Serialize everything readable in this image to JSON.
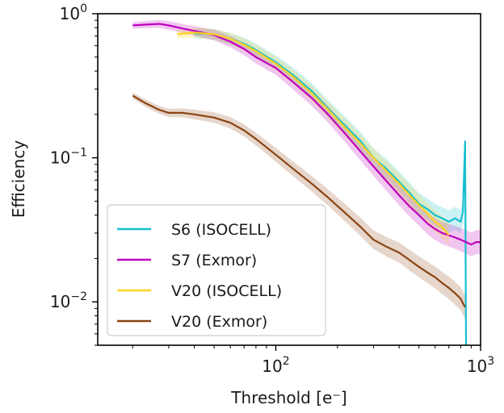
{
  "chart_data": {
    "type": "line",
    "xlabel": "Threshold [e⁻]",
    "ylabel": "Efficiency",
    "xscale": "log",
    "yscale": "log",
    "xlim": [
      13.5,
      1000
    ],
    "ylim": [
      0.005,
      1.0
    ],
    "grid": false,
    "legend_position": "lower-left",
    "x_ticks": [
      {
        "value": 100,
        "base": "10",
        "exp": "2"
      },
      {
        "value": 1000,
        "base": "10",
        "exp": "3"
      }
    ],
    "y_ticks": [
      {
        "value": 1.0,
        "base": "10",
        "exp": "0"
      },
      {
        "value": 0.1,
        "base": "10",
        "exp": "−1"
      },
      {
        "value": 0.01,
        "base": "10",
        "exp": "−2"
      }
    ],
    "series": [
      {
        "name": "S6 (ISOCELL)",
        "color": "#17becf",
        "x": [
          40,
          50,
          60,
          70,
          80,
          100,
          120,
          150,
          180,
          220,
          260,
          300,
          350,
          400,
          450,
          500,
          550,
          600,
          650,
          700,
          750,
          800,
          820,
          840,
          850
        ],
        "y": [
          0.73,
          0.72,
          0.67,
          0.62,
          0.56,
          0.46,
          0.38,
          0.29,
          0.22,
          0.165,
          0.13,
          0.1,
          0.083,
          0.068,
          0.057,
          0.048,
          0.044,
          0.04,
          0.038,
          0.036,
          0.038,
          0.036,
          0.042,
          0.13,
          0.004
        ]
      },
      {
        "name": "S7 (Exmor)",
        "color": "#bf00bf",
        "x": [
          20,
          23,
          27,
          30,
          35,
          40,
          50,
          60,
          70,
          80,
          100,
          120,
          150,
          180,
          220,
          260,
          300,
          350,
          400,
          450,
          500,
          550,
          600,
          650,
          700,
          750,
          800,
          850,
          900,
          950,
          1000
        ],
        "y": [
          0.83,
          0.84,
          0.85,
          0.83,
          0.79,
          0.76,
          0.71,
          0.64,
          0.57,
          0.5,
          0.42,
          0.34,
          0.26,
          0.2,
          0.145,
          0.11,
          0.087,
          0.068,
          0.055,
          0.046,
          0.04,
          0.035,
          0.032,
          0.03,
          0.029,
          0.028,
          0.027,
          0.026,
          0.025,
          0.026,
          0.026
        ]
      },
      {
        "name": "V20 (ISOCELL)",
        "color": "#ffd21f",
        "x": [
          33,
          40,
          50,
          60,
          70,
          80,
          100,
          120,
          150,
          180,
          220,
          260,
          300,
          350,
          400,
          450,
          500,
          550,
          600,
          650,
          700
        ],
        "y": [
          0.72,
          0.74,
          0.72,
          0.67,
          0.61,
          0.55,
          0.45,
          0.37,
          0.28,
          0.215,
          0.16,
          0.125,
          0.1,
          0.08,
          0.066,
          0.055,
          0.047,
          0.041,
          0.036,
          0.033,
          0.029
        ]
      },
      {
        "name": "V20 (Exmor)",
        "color": "#8b4513",
        "x": [
          20,
          23,
          27,
          30,
          35,
          40,
          50,
          60,
          70,
          80,
          100,
          120,
          150,
          180,
          220,
          260,
          300,
          350,
          400,
          450,
          500,
          550,
          600,
          650,
          700,
          750,
          800,
          820,
          840
        ],
        "y": [
          0.27,
          0.24,
          0.215,
          0.205,
          0.205,
          0.2,
          0.19,
          0.175,
          0.155,
          0.135,
          0.105,
          0.085,
          0.066,
          0.053,
          0.041,
          0.033,
          0.027,
          0.024,
          0.022,
          0.0195,
          0.0175,
          0.016,
          0.0148,
          0.0135,
          0.0125,
          0.0115,
          0.0105,
          0.0098,
          0.0092
        ]
      }
    ]
  }
}
